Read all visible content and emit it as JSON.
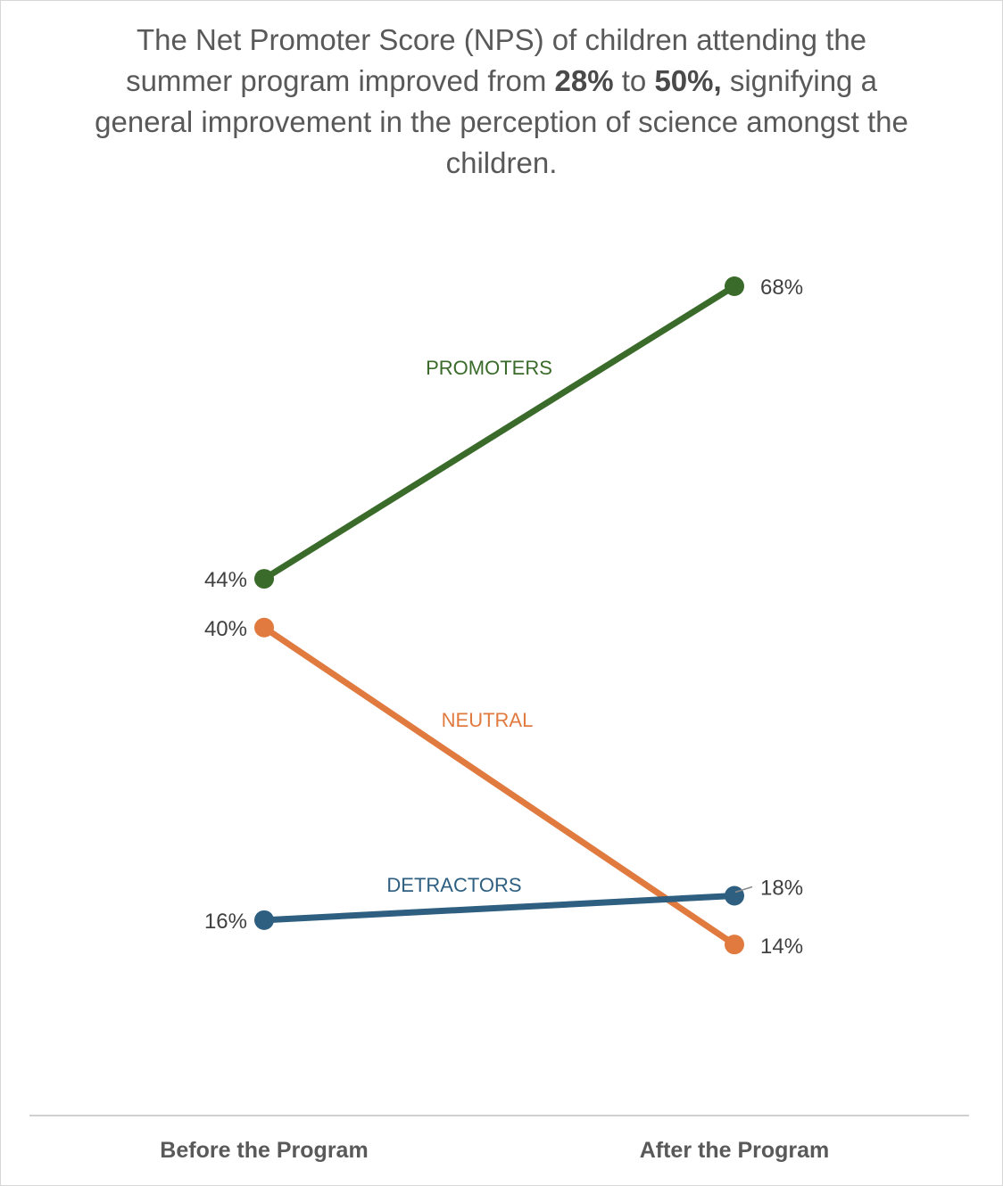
{
  "title": {
    "part1": "The Net Promoter Score (NPS) of children attending the summer program improved from ",
    "bold1": "28%",
    "part2": " to ",
    "bold2": "50%,",
    "part3": " signifying a general improvement in the perception of science amongst the children."
  },
  "chart_data": {
    "type": "line",
    "categories": [
      "Before the Program",
      "After the Program"
    ],
    "series": [
      {
        "name": "PROMOTERS",
        "values": [
          44,
          68
        ],
        "labels": [
          "44%",
          "68%"
        ],
        "color": "#3a6b2a"
      },
      {
        "name": "NEUTRAL",
        "values": [
          40,
          14
        ],
        "labels": [
          "40%",
          "14%"
        ],
        "color": "#e07a3f"
      },
      {
        "name": "DETRACTORS",
        "values": [
          16,
          18
        ],
        "labels": [
          "16%",
          "18%"
        ],
        "color": "#2e5f80"
      }
    ],
    "xlabel": "",
    "ylabel": "",
    "grid": false,
    "legend": "none"
  }
}
